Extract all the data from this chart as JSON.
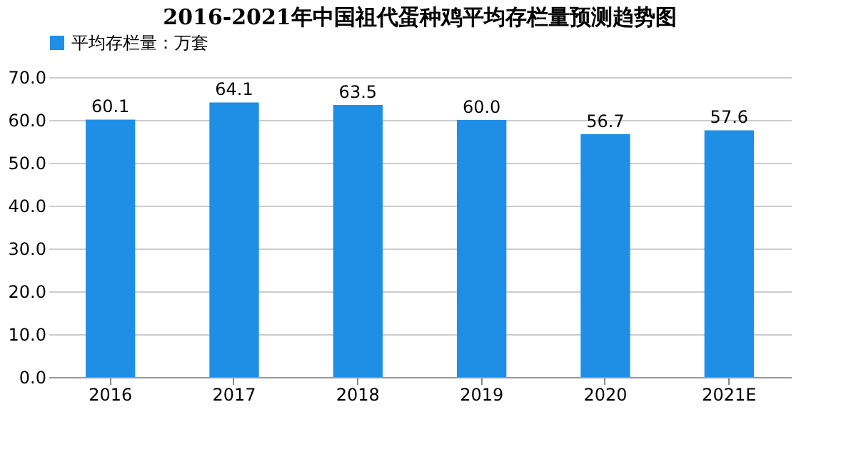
{
  "chart_data": {
    "type": "bar",
    "title": "2016-2021年中国祖代蛋种鸡平均存栏量预测趋势图",
    "categories": [
      "2016",
      "2017",
      "2018",
      "2019",
      "2020",
      "2021E"
    ],
    "series": [
      {
        "name": "平均存栏量：万套",
        "color": "#1f8fe6",
        "values": [
          60.1,
          64.1,
          63.5,
          60.0,
          56.7,
          57.6
        ],
        "value_labels": [
          "60.1",
          "64.1",
          "63.5",
          "60.0",
          "56.7",
          "57.6"
        ]
      }
    ],
    "ylim": [
      0,
      70
    ],
    "yticks": [
      {
        "value": 0,
        "label": "0.0"
      },
      {
        "value": 10,
        "label": "10.0"
      },
      {
        "value": 20,
        "label": "20.0"
      },
      {
        "value": 30,
        "label": "30.0"
      },
      {
        "value": 40,
        "label": "40.0"
      },
      {
        "value": 50,
        "label": "50.0"
      },
      {
        "value": 60,
        "label": "60.0"
      },
      {
        "value": 70,
        "label": "70.0"
      }
    ],
    "grid": "y",
    "legend": "top",
    "data_labels": true
  }
}
